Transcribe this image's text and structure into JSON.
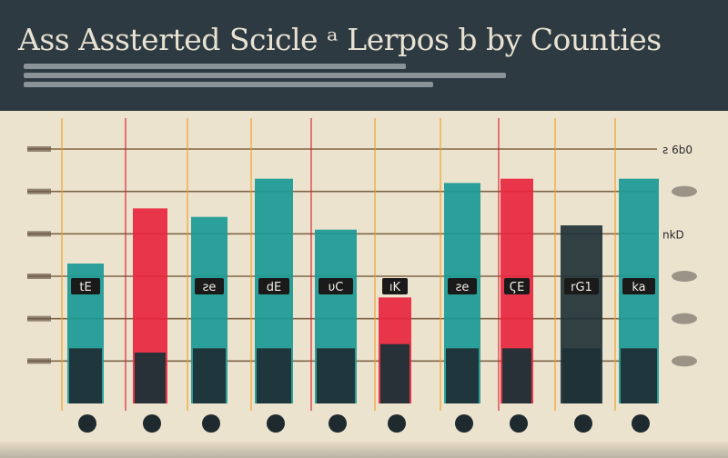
{
  "header": {
    "title": "Ass Assterted Scicle ᵃ Lerpos b by Counties"
  },
  "colors": {
    "background": "#ece3cf",
    "header": "#2e3a42",
    "teal": "#1a9a96",
    "red": "#e8263f",
    "dark": "#1f3237",
    "gridline": "#5c3b1a",
    "thread_orange": "#f0a020",
    "thread_red": "#d8202a"
  },
  "chart_data": {
    "type": "bar",
    "title": "Ass Assterted Scicle ᵃ Lerpos b by Counties",
    "xlabel": "",
    "ylabel": "",
    "categories": [
      "",
      "",
      "",
      "",
      "",
      "",
      "",
      "",
      "",
      ""
    ],
    "series": [
      {
        "values": [
          3.3,
          4.6,
          4.4,
          5.3,
          4.1,
          2.5,
          5.2,
          5.3,
          4.2,
          5.3
        ]
      },
      {
        "values": [
          1.3,
          1.2,
          1.3,
          1.3,
          1.3,
          1.4,
          1.3,
          1.3,
          1.3,
          1.3
        ]
      }
    ],
    "bar_labels": [
      "tE",
      "",
      "ƨe",
      "dE",
      "υC",
      "ıK",
      "ƨe",
      "ϚE",
      "rG1",
      "ka"
    ],
    "right_tick_labels": [
      "ƨ 6b0",
      "",
      "nkD",
      "",
      "",
      ""
    ],
    "ylim": [
      0,
      6
    ],
    "grid": true,
    "legend": "none"
  }
}
